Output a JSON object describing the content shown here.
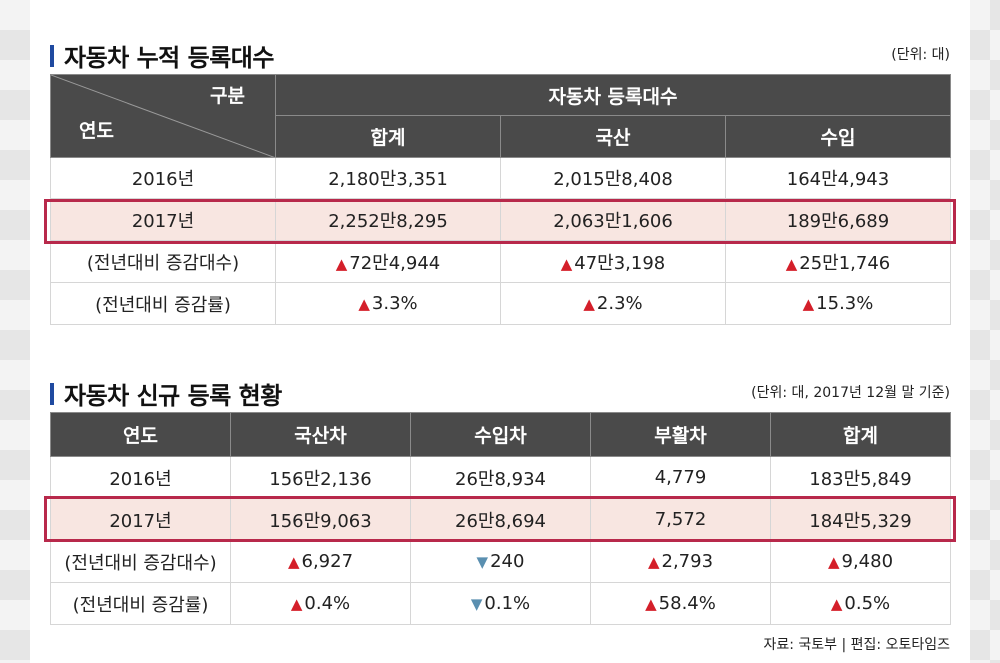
{
  "t1": {
    "title": "자동차 누적 등록대수",
    "unit": "(단위: 대)",
    "corner_top": "구분",
    "corner_bottom": "연도",
    "group_header": "자동차 등록대수",
    "columns": [
      "합계",
      "국산",
      "수입"
    ],
    "rows": [
      {
        "label": "2016년",
        "values": [
          "2,180만3,351",
          "2,015만8,408",
          "164만4,943"
        ]
      },
      {
        "label": "2017년",
        "values": [
          "2,252만8,295",
          "2,063만1,606",
          "189만6,689"
        ]
      },
      {
        "label": "(전년대비 증감대수)",
        "values": [
          "72만4,944",
          "47만3,198",
          "25만1,746"
        ]
      },
      {
        "label": "(전년대비 증감률)",
        "values": [
          "3.3%",
          "2.3%",
          "15.3%"
        ]
      }
    ],
    "up_marker": "▲"
  },
  "t2": {
    "title": "자동차 신규 등록 현황",
    "unit": "(단위: 대, 2017년 12월 말 기준)",
    "columns": [
      "연도",
      "국산차",
      "수입차",
      "부활차",
      "합계"
    ],
    "rows": [
      {
        "label": "2016년",
        "values": [
          "156만2,136",
          "26만8,934",
          "4,779",
          "183만5,849"
        ]
      },
      {
        "label": "2017년",
        "values": [
          "156만9,063",
          "26만8,694",
          "7,572",
          "184만5,329"
        ]
      },
      {
        "label": "(전년대비 증감대수)",
        "values": [
          "6,927",
          "240",
          "2,793",
          "9,480"
        ]
      },
      {
        "label": "(전년대비 증감률)",
        "values": [
          "0.4%",
          "0.1%",
          "58.4%",
          "0.5%"
        ]
      }
    ],
    "up_marker": "▲",
    "down_marker": "▼"
  },
  "source": "자료: 국토부 | 편집: 오토타임즈",
  "colors": {
    "accent": "#1f4aa0",
    "header_bg": "#4a4a4a",
    "highlight_bg": "#f8e6e1",
    "highlight_border": "#b8294b",
    "up": "#d41f2a",
    "down": "#5a8fb0"
  }
}
